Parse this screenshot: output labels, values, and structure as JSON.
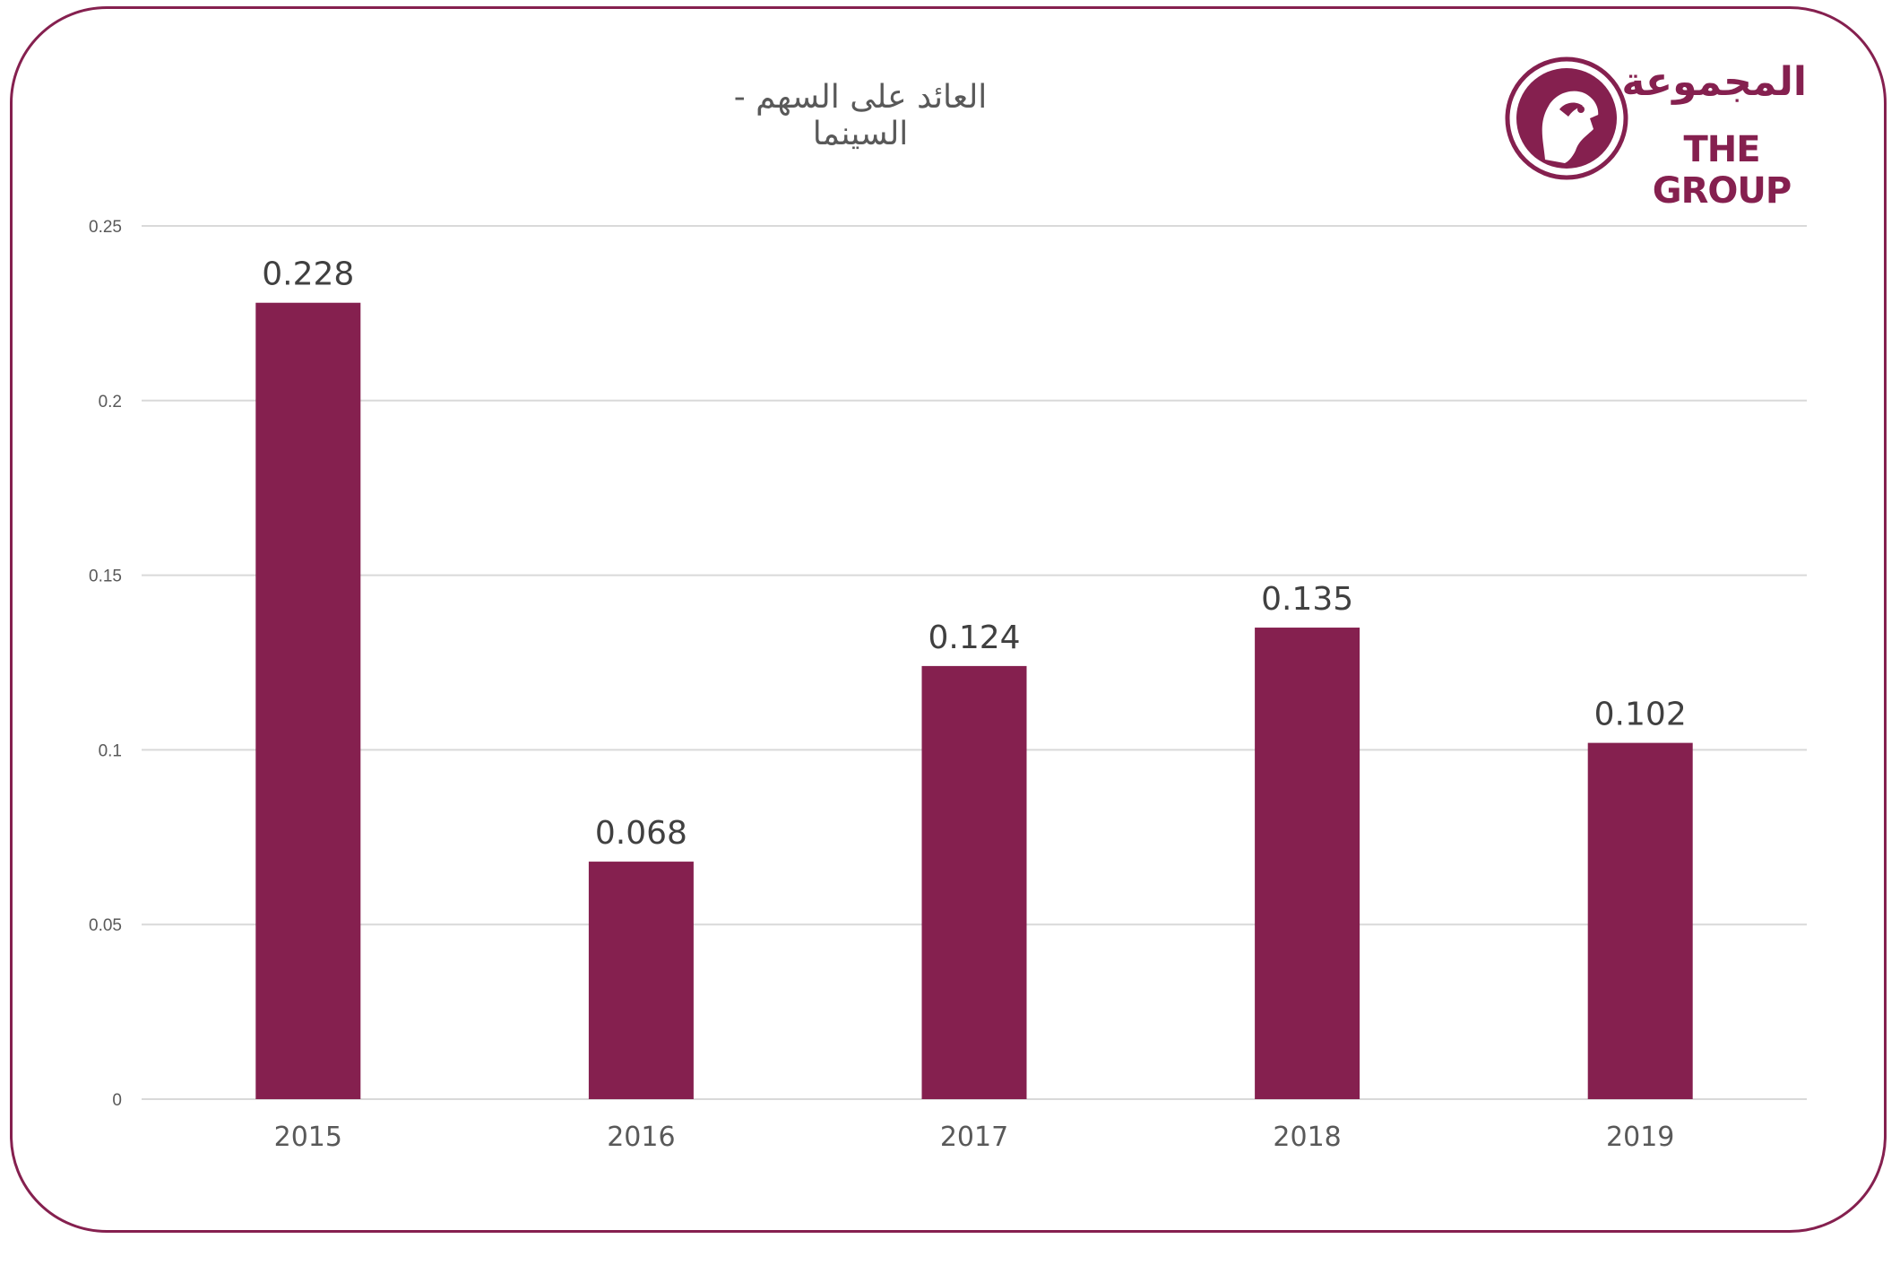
{
  "logo": {
    "arabic": "المجموعة",
    "english": "THE GROUP",
    "icon": "falcon-emblem-icon",
    "color": "#85204f"
  },
  "chart_data": {
    "type": "bar",
    "title": "العائد على السهم - السينما",
    "categories": [
      "2015",
      "2016",
      "2017",
      "2018",
      "2019"
    ],
    "values": [
      0.228,
      0.068,
      0.124,
      0.135,
      0.102
    ],
    "value_labels": [
      "0.228",
      "0.068",
      "0.124",
      "0.135",
      "0.102"
    ],
    "ylim": [
      0,
      0.25
    ],
    "yticks": [
      "0",
      "0.05",
      "0.1",
      "0.15",
      "0.2",
      "0.25"
    ],
    "xlabel": "",
    "ylabel": "",
    "grid": true,
    "legend": "none",
    "bar_color": "#85204f"
  }
}
